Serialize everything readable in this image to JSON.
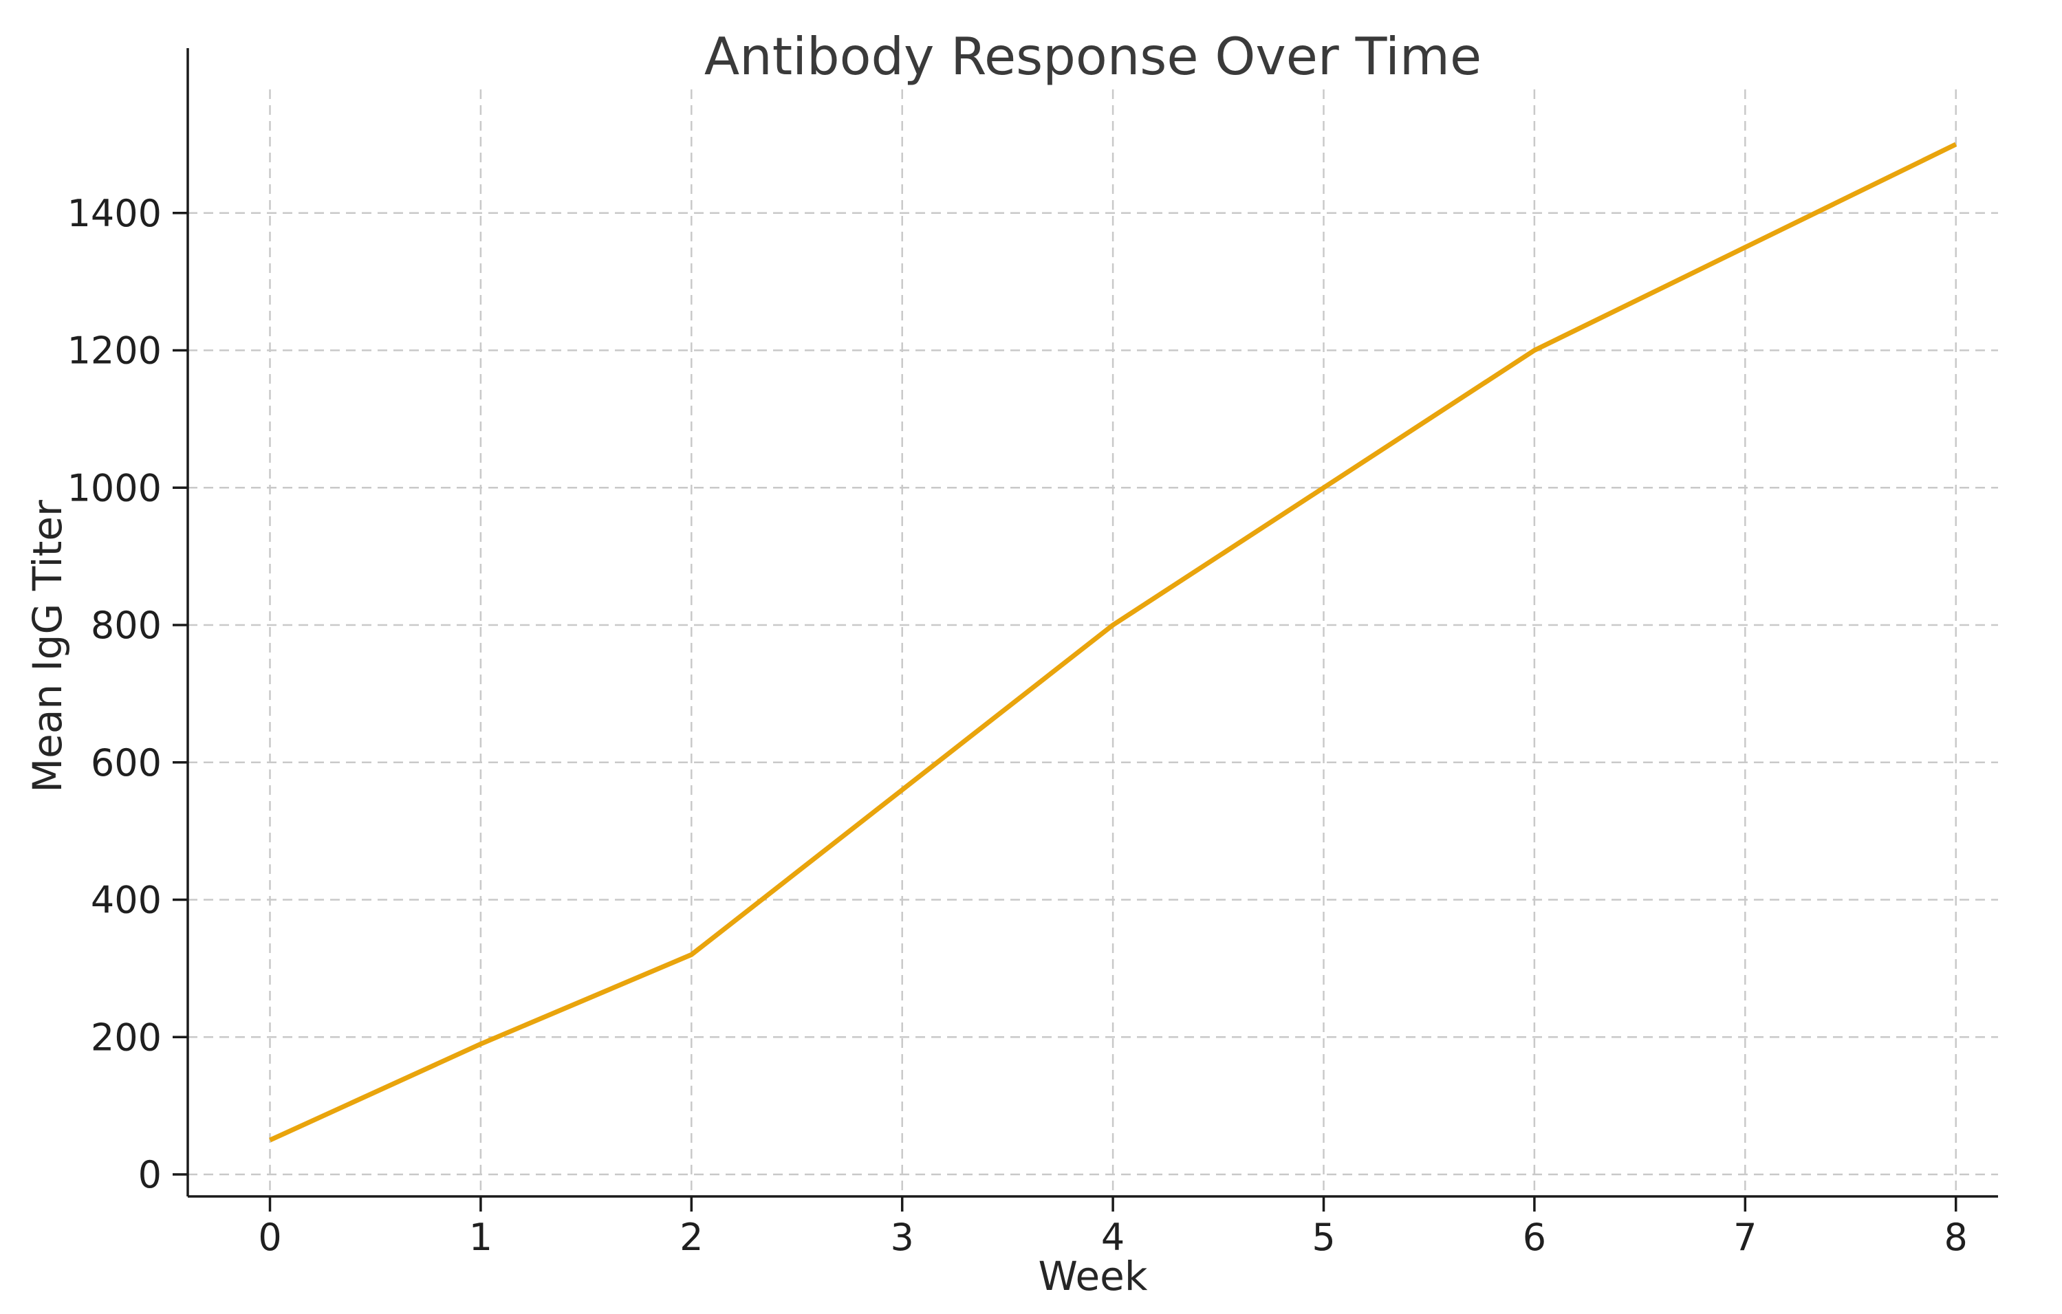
{
  "chart_data": {
    "type": "line",
    "title": "Antibody Response Over Time",
    "xlabel": "Week",
    "ylabel": "Mean IgG Titer",
    "x": [
      0,
      1,
      2,
      3,
      4,
      5,
      6,
      7,
      8
    ],
    "series": [
      {
        "name": "Mean IgG Titer",
        "values": [
          50,
          190,
          320,
          560,
          800,
          1000,
          1200,
          1350,
          1500
        ]
      }
    ],
    "x_ticks": [
      0,
      1,
      2,
      3,
      4,
      5,
      6,
      7,
      8
    ],
    "y_ticks": [
      0,
      200,
      400,
      600,
      800,
      1000,
      1200,
      1400
    ],
    "xlim": [
      -0.39,
      8.2
    ],
    "ylim": [
      -32,
      1580
    ],
    "grid": "dashed both axes",
    "legend": "none",
    "line_color": "#E9A40C",
    "grid_color": "#c9c9c9",
    "spine_color": "#1a1a1a",
    "tick_label_color": "#1f1f1f",
    "title_color": "#3a3a3a",
    "background_color": "#ffffff"
  }
}
